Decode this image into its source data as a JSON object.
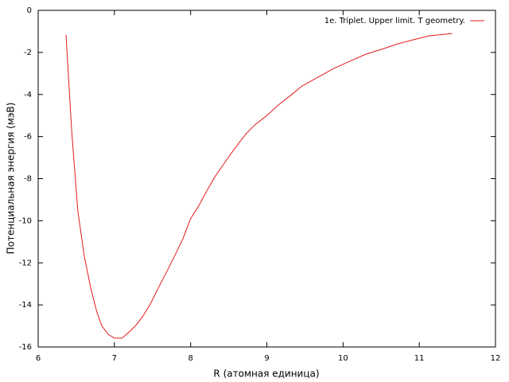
{
  "chart_data": {
    "type": "line",
    "x_label": "R (атомная единица)",
    "y_label": "Потенциальная энергия (мэВ)",
    "xlim": [
      6,
      12
    ],
    "xticks": [
      6,
      7,
      8,
      9,
      10,
      11,
      12
    ],
    "ylim": [
      -16,
      0
    ],
    "yticks": [
      -16,
      -14,
      -12,
      -10,
      -8,
      -6,
      -4,
      -2,
      0
    ],
    "grid": false,
    "legend": "top-right",
    "series": [
      {
        "name": "1e. Triplet. Upper limit. T geometry.",
        "color": "#e41a1c",
        "x": [
          6.365,
          6.44,
          6.52,
          6.605,
          6.69,
          6.77,
          6.835,
          6.92,
          7.0,
          7.1,
          7.19,
          7.29,
          7.38,
          7.48,
          7.59,
          7.69,
          7.8,
          7.9,
          8.0,
          8.11,
          8.21,
          8.32,
          8.42,
          8.53,
          8.63,
          8.73,
          8.84,
          9.0,
          9.15,
          9.31,
          9.46,
          9.67,
          9.88,
          10.09,
          10.3,
          10.51,
          10.72,
          10.92,
          11.13,
          11.43
        ],
        "values": [
          -1.17,
          -5.75,
          -9.53,
          -11.69,
          -13.2,
          -14.34,
          -15.0,
          -15.4,
          -15.58,
          -15.58,
          -15.3,
          -14.94,
          -14.5,
          -13.9,
          -13.1,
          -12.4,
          -11.6,
          -10.85,
          -9.9,
          -9.27,
          -8.6,
          -7.9,
          -7.38,
          -6.81,
          -6.32,
          -5.86,
          -5.45,
          -5.0,
          -4.5,
          -4.05,
          -3.6,
          -3.18,
          -2.76,
          -2.42,
          -2.08,
          -1.85,
          -1.59,
          -1.4,
          -1.21,
          -1.1
        ]
      }
    ]
  }
}
